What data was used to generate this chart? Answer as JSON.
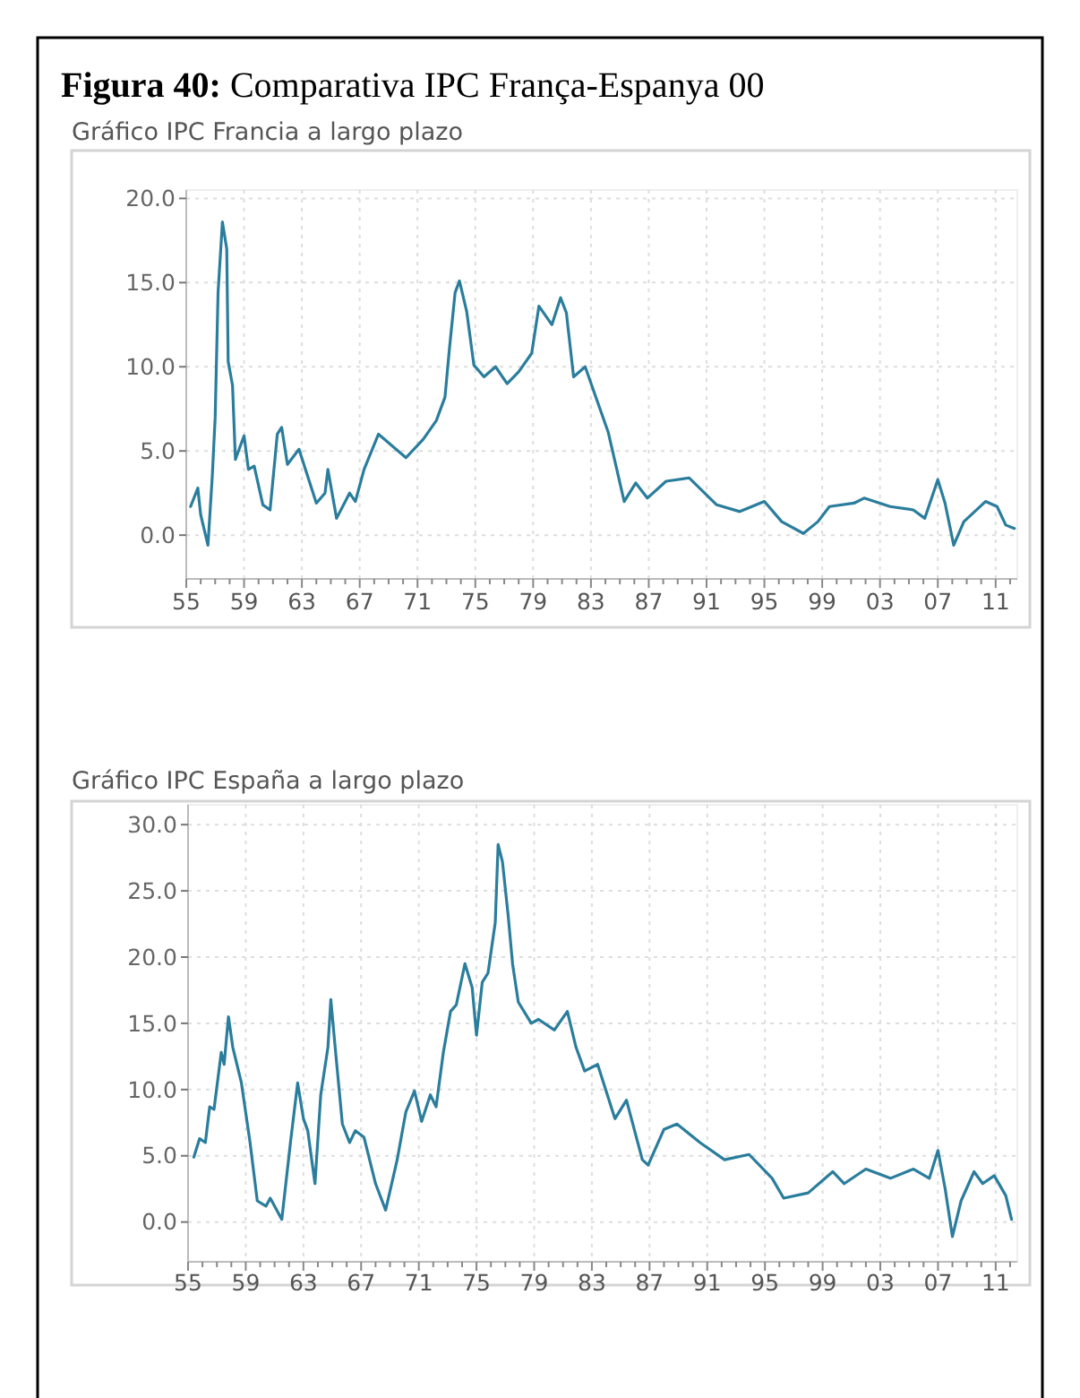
{
  "chart_data": [
    {
      "type": "line",
      "title": "Gráfico IPC Francia a largo plazo",
      "annotations": [
        "Figura 40: Comparativa IPC França-Espanya 00"
      ],
      "grid": true,
      "marker": "none",
      "line_style": "solid",
      "xlim": [
        1955,
        2012.5
      ],
      "ylim": [
        -2.6,
        20.5
      ],
      "yticks": [
        {
          "value": 0,
          "label": "0.0"
        },
        {
          "value": 5,
          "label": "5.0"
        },
        {
          "value": 10,
          "label": "10.0"
        },
        {
          "value": 15,
          "label": "15.0"
        },
        {
          "value": 20,
          "label": "20.0"
        }
      ],
      "xticks": [
        {
          "value": 1955,
          "label": "55"
        },
        {
          "value": 1956,
          "label": null
        },
        {
          "value": 1957,
          "label": null
        },
        {
          "value": 1958,
          "label": null
        },
        {
          "value": 1959,
          "label": "59"
        },
        {
          "value": 1960,
          "label": null
        },
        {
          "value": 1961,
          "label": null
        },
        {
          "value": 1962,
          "label": null
        },
        {
          "value": 1963,
          "label": "63"
        },
        {
          "value": 1964,
          "label": null
        },
        {
          "value": 1965,
          "label": null
        },
        {
          "value": 1966,
          "label": null
        },
        {
          "value": 1967,
          "label": "67"
        },
        {
          "value": 1968,
          "label": null
        },
        {
          "value": 1969,
          "label": null
        },
        {
          "value": 1970,
          "label": null
        },
        {
          "value": 1971,
          "label": "71"
        },
        {
          "value": 1972,
          "label": null
        },
        {
          "value": 1973,
          "label": null
        },
        {
          "value": 1974,
          "label": null
        },
        {
          "value": 1975,
          "label": "75"
        },
        {
          "value": 1976,
          "label": null
        },
        {
          "value": 1977,
          "label": null
        },
        {
          "value": 1978,
          "label": null
        },
        {
          "value": 1979,
          "label": "79"
        },
        {
          "value": 1980,
          "label": null
        },
        {
          "value": 1981,
          "label": null
        },
        {
          "value": 1982,
          "label": null
        },
        {
          "value": 1983,
          "label": "83"
        },
        {
          "value": 1984,
          "label": null
        },
        {
          "value": 1985,
          "label": null
        },
        {
          "value": 1986,
          "label": null
        },
        {
          "value": 1987,
          "label": "87"
        },
        {
          "value": 1988,
          "label": null
        },
        {
          "value": 1989,
          "label": null
        },
        {
          "value": 1990,
          "label": null
        },
        {
          "value": 1991,
          "label": "91"
        },
        {
          "value": 1992,
          "label": null
        },
        {
          "value": 1993,
          "label": null
        },
        {
          "value": 1994,
          "label": null
        },
        {
          "value": 1995,
          "label": "95"
        },
        {
          "value": 1996,
          "label": null
        },
        {
          "value": 1997,
          "label": null
        },
        {
          "value": 1998,
          "label": null
        },
        {
          "value": 1999,
          "label": "99"
        },
        {
          "value": 2000,
          "label": null
        },
        {
          "value": 2001,
          "label": null
        },
        {
          "value": 2002,
          "label": null
        },
        {
          "value": 2003,
          "label": "03"
        },
        {
          "value": 2004,
          "label": null
        },
        {
          "value": 2005,
          "label": null
        },
        {
          "value": 2006,
          "label": null
        },
        {
          "value": 2007,
          "label": "07"
        },
        {
          "value": 2008,
          "label": null
        },
        {
          "value": 2009,
          "label": null
        },
        {
          "value": 2010,
          "label": null
        },
        {
          "value": 2011,
          "label": "11"
        },
        {
          "value": 2012,
          "label": null
        }
      ],
      "series": [
        {
          "color": "#2a7d9c",
          "x": [
            1955.3,
            1955.8,
            1956,
            1956.5,
            1956.8,
            1957,
            1957.2,
            1957.5,
            1957.8,
            1957.9,
            1958.2,
            1958.4,
            1959,
            1959.3,
            1959.7,
            1960.3,
            1960.8,
            1961.3,
            1961.6,
            1962,
            1962.8,
            1964,
            1964.6,
            1964.8,
            1965.4,
            1966.3,
            1966.7,
            1967.3,
            1968.3,
            1970.2,
            1971.4,
            1972.3,
            1972.9,
            1973.2,
            1973.6,
            1973.9,
            1974.4,
            1974.9,
            1975.6,
            1976.4,
            1977.2,
            1978,
            1978.9,
            1979.4,
            1980.3,
            1980.9,
            1981.3,
            1981.8,
            1982.6,
            1984.2,
            1985.3,
            1986.1,
            1986.9,
            1988.2,
            1989.8,
            1991.7,
            1993.3,
            1995,
            1996.2,
            1997.7,
            1998.7,
            1999.5,
            2001.2,
            2001.9,
            2003.7,
            2005.3,
            2006.1,
            2007,
            2007.5,
            2008.1,
            2008.8,
            2010.3,
            2011.1,
            2011.7,
            2012.3
          ],
          "values": [
            1.7,
            2.8,
            1.2,
            -0.6,
            3.5,
            7,
            14.4,
            18.6,
            17,
            10.3,
            8.9,
            4.5,
            5.9,
            3.9,
            4.1,
            1.8,
            1.5,
            6,
            6.4,
            4.2,
            5.1,
            1.9,
            2.5,
            3.9,
            1,
            2.5,
            2,
            3.9,
            6,
            4.6,
            5.7,
            6.8,
            8.2,
            11,
            14.4,
            15.1,
            13.3,
            10.1,
            9.4,
            10,
            9,
            9.7,
            10.8,
            13.6,
            12.5,
            14.1,
            13.2,
            9.4,
            10,
            6.1,
            2,
            3.1,
            2.2,
            3.2,
            3.4,
            1.8,
            1.4,
            2,
            0.8,
            0.1,
            0.8,
            1.7,
            1.9,
            2.2,
            1.7,
            1.5,
            1,
            3.3,
            1.9,
            -0.6,
            0.8,
            2,
            1.7,
            0.6,
            0.4
          ]
        }
      ]
    },
    {
      "type": "line",
      "title": "Gráfico IPC España a largo plazo",
      "grid": true,
      "marker": "none",
      "line_style": "solid",
      "xlim": [
        1955,
        2012.5
      ],
      "ylim": [
        -3,
        31.5
      ],
      "yticks": [
        {
          "value": 0,
          "label": "0.0"
        },
        {
          "value": 5,
          "label": "5.0"
        },
        {
          "value": 10,
          "label": "10.0"
        },
        {
          "value": 15,
          "label": "15.0"
        },
        {
          "value": 20,
          "label": "20.0"
        },
        {
          "value": 25,
          "label": "25.0"
        },
        {
          "value": 30,
          "label": "30.0"
        }
      ],
      "xticks": [
        {
          "value": 1955,
          "label": "55"
        },
        {
          "value": 1956,
          "label": null
        },
        {
          "value": 1957,
          "label": null
        },
        {
          "value": 1958,
          "label": null
        },
        {
          "value": 1959,
          "label": "59"
        },
        {
          "value": 1960,
          "label": null
        },
        {
          "value": 1961,
          "label": null
        },
        {
          "value": 1962,
          "label": null
        },
        {
          "value": 1963,
          "label": "63"
        },
        {
          "value": 1964,
          "label": null
        },
        {
          "value": 1965,
          "label": null
        },
        {
          "value": 1966,
          "label": null
        },
        {
          "value": 1967,
          "label": "67"
        },
        {
          "value": 1968,
          "label": null
        },
        {
          "value": 1969,
          "label": null
        },
        {
          "value": 1970,
          "label": null
        },
        {
          "value": 1971,
          "label": "71"
        },
        {
          "value": 1972,
          "label": null
        },
        {
          "value": 1973,
          "label": null
        },
        {
          "value": 1974,
          "label": null
        },
        {
          "value": 1975,
          "label": "75"
        },
        {
          "value": 1976,
          "label": null
        },
        {
          "value": 1977,
          "label": null
        },
        {
          "value": 1978,
          "label": null
        },
        {
          "value": 1979,
          "label": "79"
        },
        {
          "value": 1980,
          "label": null
        },
        {
          "value": 1981,
          "label": null
        },
        {
          "value": 1982,
          "label": null
        },
        {
          "value": 1983,
          "label": "83"
        },
        {
          "value": 1984,
          "label": null
        },
        {
          "value": 1985,
          "label": null
        },
        {
          "value": 1986,
          "label": null
        },
        {
          "value": 1987,
          "label": "87"
        },
        {
          "value": 1988,
          "label": null
        },
        {
          "value": 1989,
          "label": null
        },
        {
          "value": 1990,
          "label": null
        },
        {
          "value": 1991,
          "label": "91"
        },
        {
          "value": 1992,
          "label": null
        },
        {
          "value": 1993,
          "label": null
        },
        {
          "value": 1994,
          "label": null
        },
        {
          "value": 1995,
          "label": "95"
        },
        {
          "value": 1996,
          "label": null
        },
        {
          "value": 1997,
          "label": null
        },
        {
          "value": 1998,
          "label": null
        },
        {
          "value": 1999,
          "label": "99"
        },
        {
          "value": 2000,
          "label": null
        },
        {
          "value": 2001,
          "label": null
        },
        {
          "value": 2002,
          "label": null
        },
        {
          "value": 2003,
          "label": "03"
        },
        {
          "value": 2004,
          "label": null
        },
        {
          "value": 2005,
          "label": null
        },
        {
          "value": 2006,
          "label": null
        },
        {
          "value": 2007,
          "label": "07"
        },
        {
          "value": 2008,
          "label": null
        },
        {
          "value": 2009,
          "label": null
        },
        {
          "value": 2010,
          "label": null
        },
        {
          "value": 2011,
          "label": "11"
        },
        {
          "value": 2012,
          "label": null
        }
      ],
      "series": [
        {
          "color": "#2a7d9c",
          "x": [
            1955.4,
            1955.8,
            1956.2,
            1956.5,
            1956.8,
            1957.3,
            1957.5,
            1957.8,
            1958.1,
            1958.7,
            1959.3,
            1959.8,
            1960.4,
            1960.7,
            1961.5,
            1962.1,
            1962.6,
            1963,
            1963.3,
            1963.8,
            1964.2,
            1964.7,
            1964.9,
            1965.2,
            1965.7,
            1966.2,
            1966.6,
            1967.2,
            1968,
            1968.7,
            1969.5,
            1970.1,
            1970.7,
            1971.2,
            1971.8,
            1972.2,
            1972.7,
            1973.2,
            1973.6,
            1974.2,
            1974.7,
            1975,
            1975.4,
            1975.8,
            1976.3,
            1976.5,
            1976.8,
            1977.2,
            1977.5,
            1977.9,
            1978.8,
            1979.3,
            1980.4,
            1981.3,
            1981.9,
            1982.5,
            1983.4,
            1984.6,
            1985.4,
            1986.5,
            1986.9,
            1988,
            1988.9,
            1990.5,
            1992.2,
            1993.9,
            1995.5,
            1996.3,
            1998,
            1999.7,
            2000.5,
            2002,
            2003.7,
            2005.3,
            2006.4,
            2007,
            2007.5,
            2008,
            2008.6,
            2009.5,
            2010.1,
            2010.9,
            2011.7,
            2012.1
          ],
          "values": [
            4.9,
            6.3,
            6,
            8.7,
            8.5,
            12.8,
            11.9,
            15.5,
            13.2,
            10.5,
            6,
            1.6,
            1.2,
            1.8,
            0.2,
            6,
            10.5,
            7.8,
            6.9,
            2.9,
            9.6,
            13.2,
            16.8,
            13.2,
            7.4,
            6,
            6.9,
            6.4,
            2.9,
            0.9,
            4.7,
            8.3,
            9.9,
            7.6,
            9.6,
            8.7,
            12.8,
            15.9,
            16.4,
            19.5,
            17.7,
            14.1,
            18.1,
            18.8,
            22.6,
            28.5,
            27.2,
            23.1,
            19.5,
            16.6,
            15,
            15.3,
            14.5,
            15.9,
            13.2,
            11.4,
            11.9,
            7.8,
            9.2,
            4.7,
            4.3,
            7,
            7.4,
            6,
            4.7,
            5.1,
            3.3,
            1.8,
            2.2,
            3.8,
            2.9,
            4,
            3.3,
            4,
            3.3,
            5.4,
            2.5,
            -1.1,
            1.6,
            3.8,
            2.9,
            3.5,
            2,
            0.2
          ]
        }
      ]
    }
  ]
}
